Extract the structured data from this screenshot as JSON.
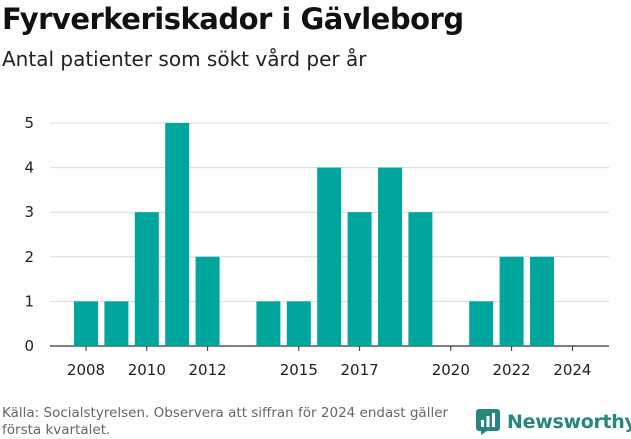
{
  "chart_data": {
    "type": "bar",
    "title": "Fyrverkeriskador i Gävleborg",
    "subtitle": "Antal patienter som sökt vård per år",
    "categories": [
      2008,
      2009,
      2010,
      2011,
      2012,
      2013,
      2014,
      2015,
      2016,
      2017,
      2018,
      2019,
      2020,
      2021,
      2022,
      2023,
      2024
    ],
    "values": [
      1,
      1,
      3,
      5,
      2,
      0,
      1,
      1,
      4,
      3,
      4,
      3,
      0,
      1,
      2,
      2,
      0
    ],
    "x_tick_labels": [
      "2008",
      "2010",
      "2012",
      "2015",
      "2017",
      "2020",
      "2022",
      "2024"
    ],
    "y_ticks": [
      0,
      1,
      2,
      3,
      4,
      5
    ],
    "ylim": [
      0,
      5
    ],
    "grid": true,
    "bar_color": "#00a69c"
  },
  "footer": {
    "source": "Källa: Socialstyrelsen. Observera att siffran för 2024 endast gäller första kvartalet.",
    "brand": "Newsworthy",
    "brand_color": "#27877f"
  }
}
